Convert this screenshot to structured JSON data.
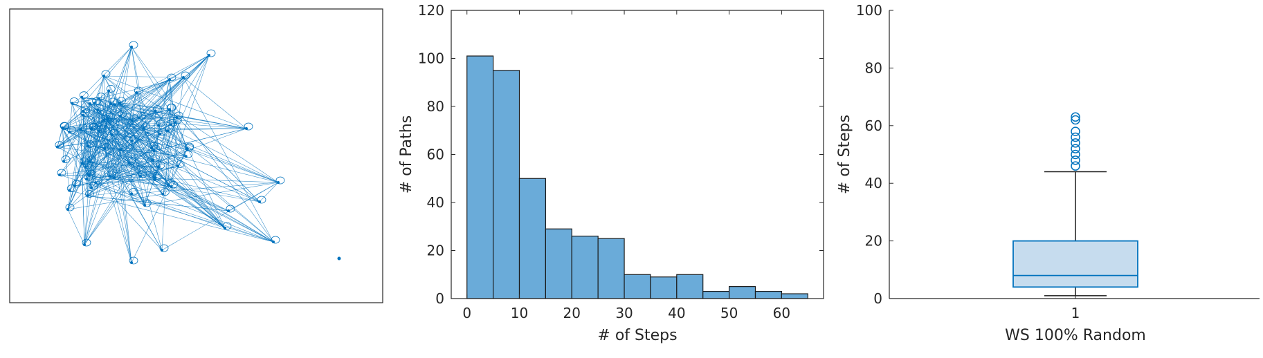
{
  "colors": {
    "accent": "#0072bd",
    "bar_fill": "#6aabd9",
    "box_fill": "#c6dcee",
    "axis": "#262626",
    "edge": "#0072bd"
  },
  "chart_data": [
    {
      "type": "network",
      "title": "",
      "description_nodes": "random graph drawing with circular node markers and thin connecting edges; one isolated node",
      "axes_visible": false
    },
    {
      "type": "bar",
      "subtype": "histogram",
      "xlabel": "# of Steps",
      "ylabel": "# of Paths",
      "bin_edges": [
        0,
        5,
        10,
        15,
        20,
        25,
        30,
        35,
        40,
        45,
        50,
        55,
        60,
        65
      ],
      "values": [
        101,
        95,
        50,
        29,
        26,
        25,
        10,
        9,
        10,
        3,
        5,
        3,
        2
      ],
      "xlim": [
        -3,
        68
      ],
      "ylim": [
        0,
        120
      ],
      "xticks": [
        "0",
        "10",
        "20",
        "30",
        "40",
        "50",
        "60"
      ],
      "yticks": [
        "0",
        "20",
        "40",
        "60",
        "80",
        "100",
        "120"
      ]
    },
    {
      "type": "box",
      "xlabel": "WS 100% Random",
      "ylabel": "# of Steps",
      "category": "1",
      "ylim": [
        0,
        100
      ],
      "yticks": [
        "0",
        "20",
        "40",
        "60",
        "80",
        "100"
      ],
      "whisker_low": 1,
      "q1": 4,
      "median": 8,
      "q3": 20,
      "whisker_high": 44,
      "outliers": [
        46,
        48,
        50,
        52,
        54,
        56,
        58,
        62,
        63
      ]
    }
  ]
}
